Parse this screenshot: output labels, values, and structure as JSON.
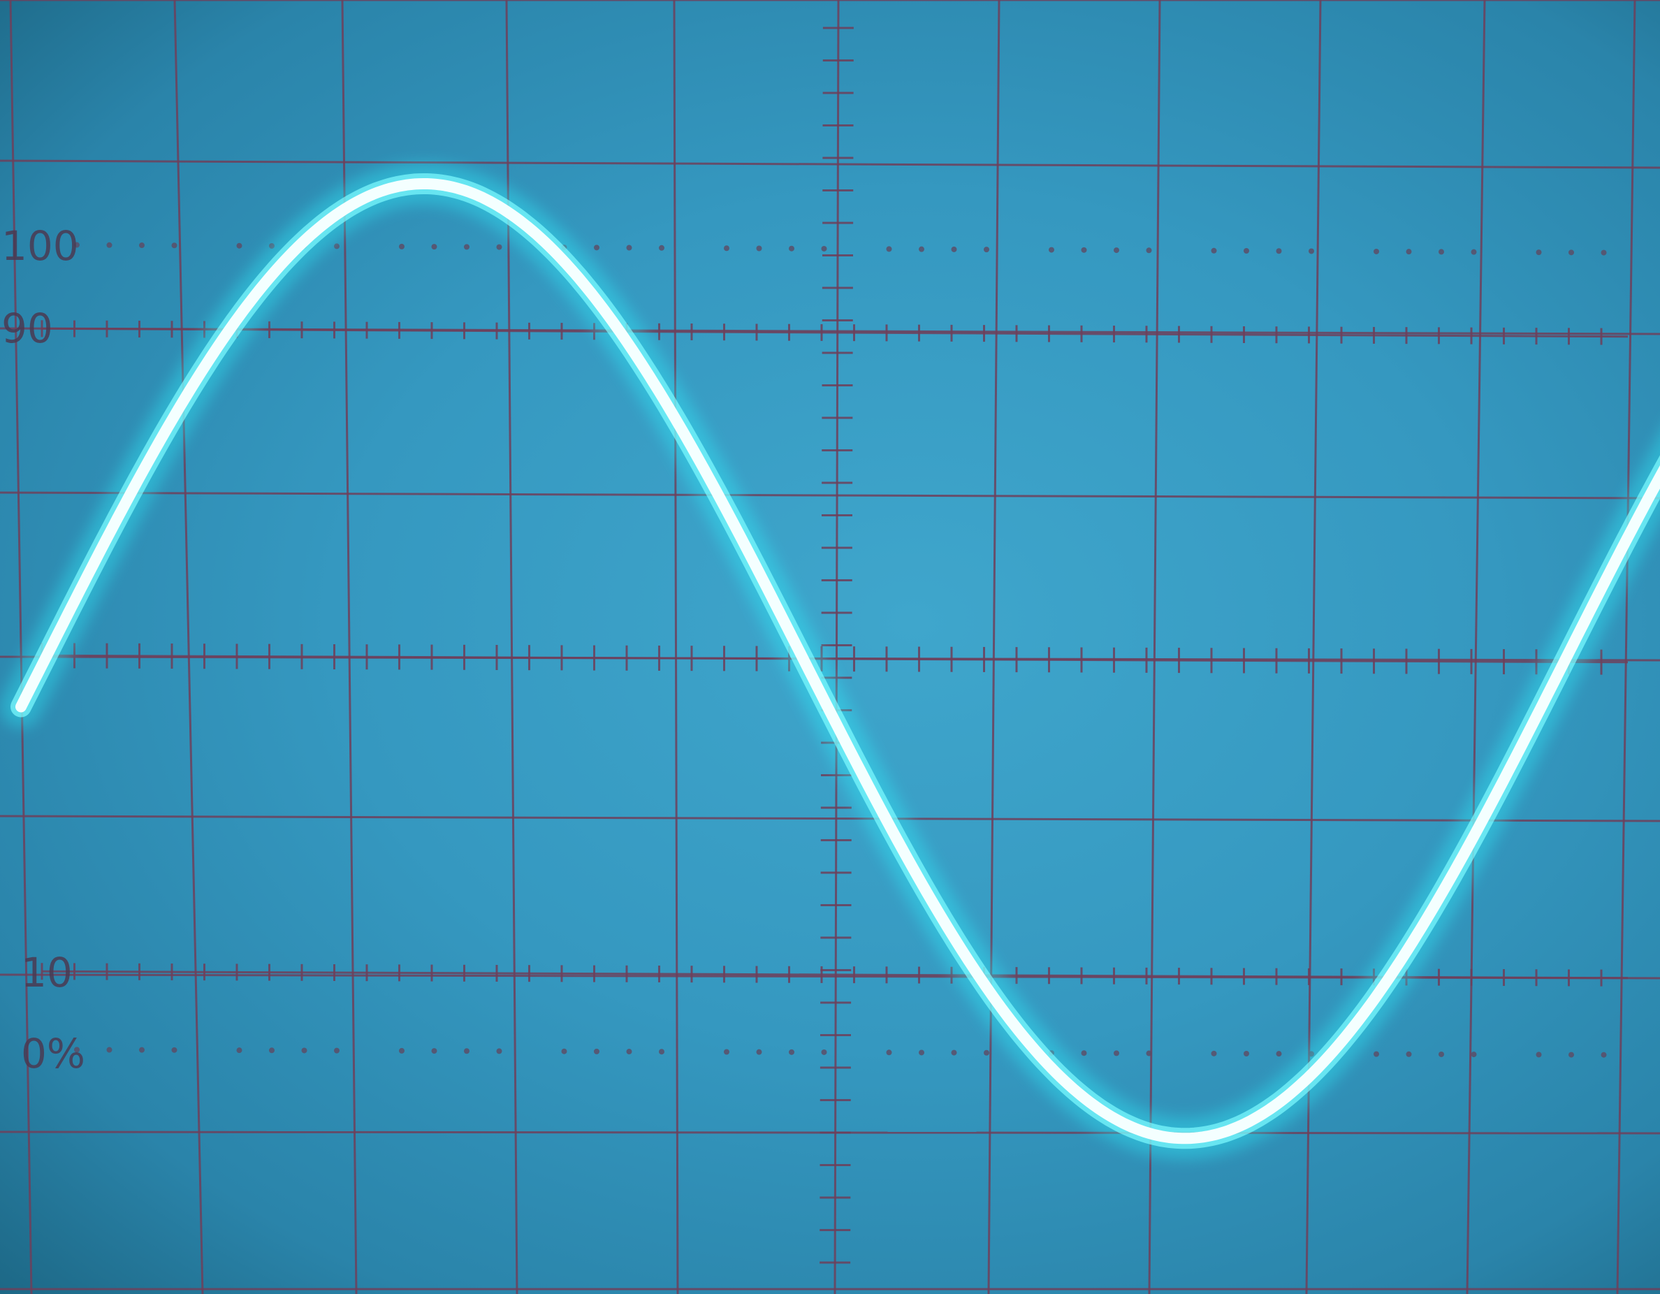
{
  "screen": {
    "labels": {
      "top_reference": "100",
      "upper_reference": "90",
      "lower_reference": "10",
      "bottom_reference": "0%"
    }
  },
  "trace": {
    "waveform": "sine",
    "cycles_visible": 1.2,
    "colors": {
      "trace": "#f4ffff",
      "glow": "#2ff5ff",
      "graticule": "#6e3f5a",
      "background": "#3598c0"
    }
  }
}
